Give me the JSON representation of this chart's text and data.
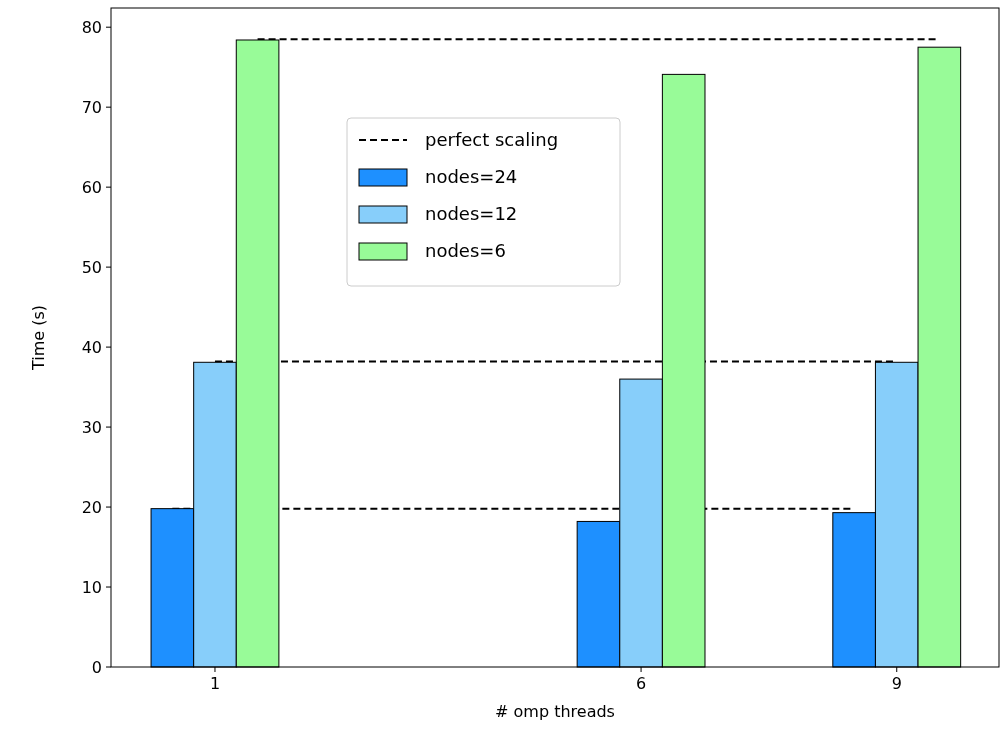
{
  "chart_data": {
    "type": "bar",
    "xlabel": "# omp threads",
    "ylabel": "Time (s)",
    "xlim": [
      -0.22,
      10.2
    ],
    "xticks": [
      1,
      6,
      9
    ],
    "ylim": [
      0,
      82.4
    ],
    "yticks": [
      0,
      10,
      20,
      30,
      40,
      50,
      60,
      70,
      80
    ],
    "legend": "top",
    "grid": false,
    "series": [
      {
        "type": "line",
        "name": "perfect scaling",
        "color": "#000000",
        "line_style": "dashed",
        "x": [
          1.5,
          9.5
        ],
        "values": [
          78.5,
          78.5
        ]
      },
      {
        "type": "line",
        "color": "#000000",
        "line_style": "dashed",
        "x": [
          1,
          9
        ],
        "values": [
          38.2,
          38.2
        ]
      },
      {
        "type": "line",
        "color": "#000000",
        "line_style": "dashed",
        "x": [
          0.5,
          8.5
        ],
        "values": [
          19.8,
          19.8
        ]
      },
      {
        "name": "nodes=24",
        "color": "#1e90ff",
        "x": [
          0.5,
          5.5,
          8.5
        ],
        "values": [
          19.8,
          18.2,
          19.3
        ]
      },
      {
        "name": "nodes=12",
        "color": "#87cefa",
        "x": [
          1,
          6,
          9
        ],
        "values": [
          38.1,
          36.0,
          38.1
        ]
      },
      {
        "name": "nodes=6",
        "color": "#98fb98",
        "x": [
          1.5,
          6.5,
          9.5
        ],
        "values": [
          78.4,
          74.1,
          77.5
        ]
      }
    ]
  }
}
